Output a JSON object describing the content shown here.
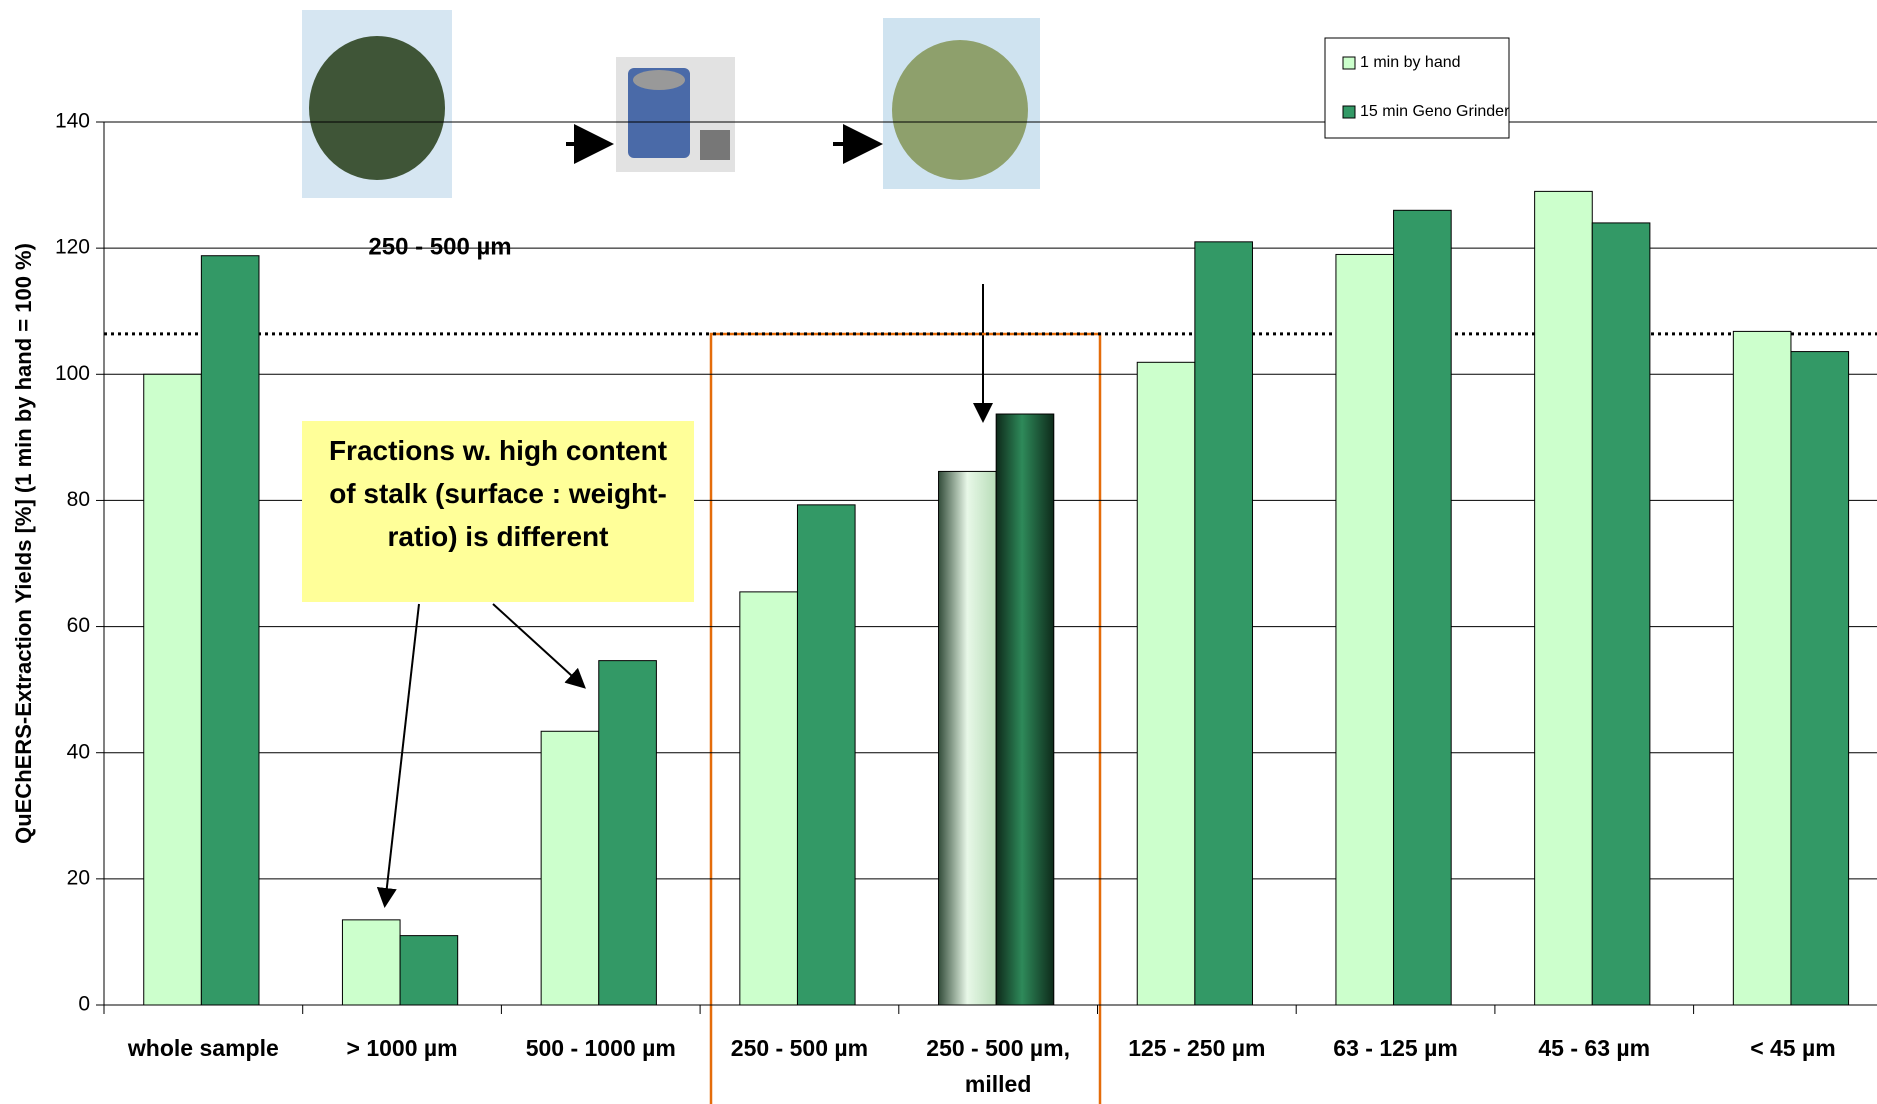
{
  "chart_data": {
    "type": "bar",
    "y_label": "QuEChERS-Extraction Yields [%] (1 min by hand = 100 %)",
    "categories": [
      "whole sample",
      "> 1000 µm",
      "500 - 1000 µm",
      "250 - 500 µm",
      "250 - 500 µm, milled",
      "125 - 250 µm",
      "63 - 125 µm",
      "45 - 63 µm",
      "< 45 µm"
    ],
    "series": [
      {
        "name": "1 min by hand",
        "color": "#ccffcc",
        "values": [
          100,
          13.5,
          43.4,
          65.5,
          84.6,
          101.9,
          119,
          129,
          106.8
        ]
      },
      {
        "name": "15 min Geno Grinder",
        "color": "#339966",
        "values": [
          118.8,
          11,
          54.6,
          79.3,
          93.7,
          121,
          126,
          124,
          103.6
        ]
      }
    ],
    "ylim": [
      0,
      140
    ],
    "yticks": [
      0,
      20,
      40,
      60,
      80,
      100,
      120,
      140
    ],
    "grid": true,
    "reference_line": 106.4,
    "annotations": [
      "250 - 500 µm",
      "Fractions w. high content of stalk (surface : weight-ratio) is different"
    ]
  }
}
